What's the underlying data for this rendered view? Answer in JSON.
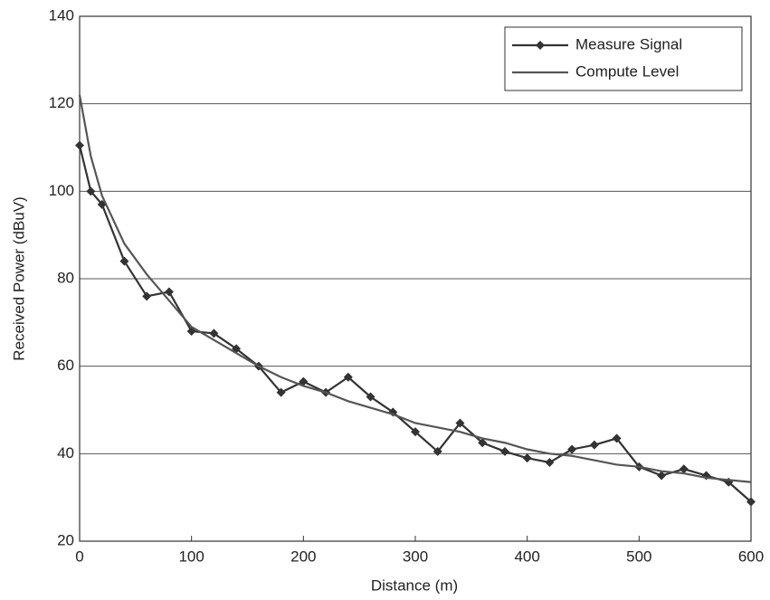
{
  "chart_data": {
    "type": "line",
    "x_label": "Distance (m)",
    "y_label": "Received Power (dBuV)",
    "x": [
      0,
      10,
      20,
      40,
      60,
      80,
      100,
      120,
      140,
      160,
      180,
      200,
      220,
      240,
      260,
      280,
      300,
      320,
      340,
      360,
      380,
      400,
      420,
      440,
      460,
      480,
      500,
      520,
      540,
      560,
      580,
      600
    ],
    "series": [
      {
        "name": "Measure Signal",
        "color": "#333333",
        "marker": "diamond",
        "values": [
          110.5,
          100,
          97,
          84,
          76,
          77,
          68,
          67.5,
          64,
          60,
          54,
          56.5,
          54,
          57.5,
          53,
          49.5,
          45,
          40.5,
          47,
          42.5,
          40.5,
          39,
          38,
          41,
          42,
          43.5,
          37,
          35,
          36.5,
          35,
          33.5,
          29
        ]
      },
      {
        "name": "Compute Level",
        "color": "#555555",
        "values": [
          122,
          108,
          99,
          88,
          81,
          75,
          69,
          66,
          63,
          60,
          57.5,
          55.5,
          54,
          52,
          50.5,
          49,
          47,
          46,
          45,
          43.5,
          42.5,
          41,
          40,
          39.5,
          38.5,
          37.5,
          37,
          36,
          35.5,
          34.5,
          34,
          33.5
        ]
      }
    ],
    "xlim": [
      0,
      600
    ],
    "xticks": [
      0,
      100,
      200,
      300,
      400,
      500,
      600
    ],
    "ylim": [
      20,
      140
    ],
    "yticks": [
      20,
      40,
      60,
      80,
      100,
      120,
      140
    ],
    "grid": true,
    "legend": "upper right"
  }
}
